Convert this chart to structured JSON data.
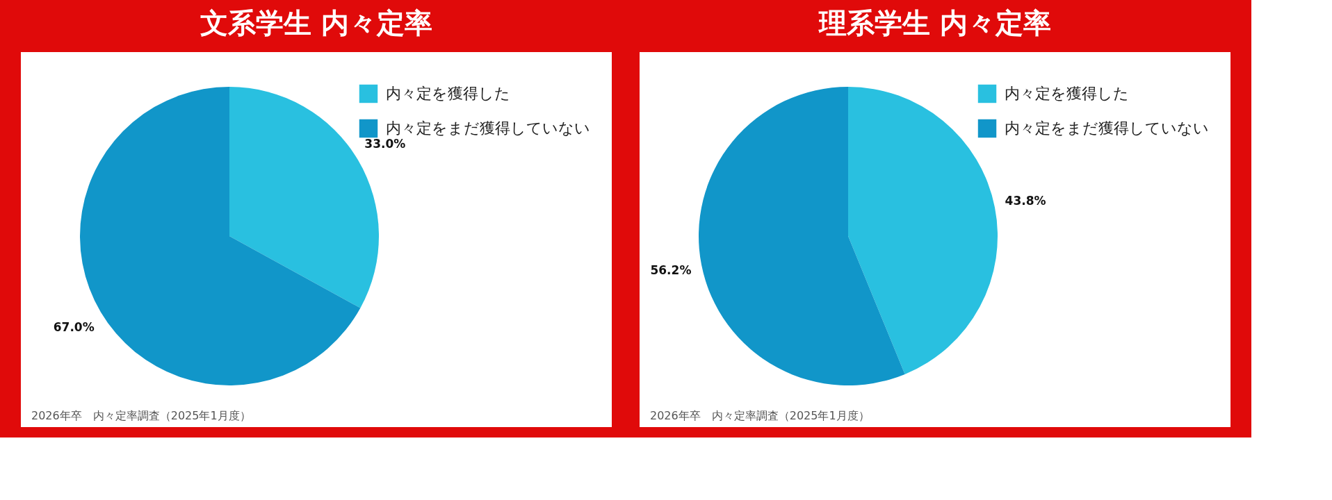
{
  "chart_data": [
    {
      "type": "pie",
      "title": "文系学生 内々定率",
      "categories": [
        "内々定を獲得した",
        "内々定をまだ獲得していない"
      ],
      "values": [
        33.0,
        67.0
      ],
      "colors": [
        "#29c0e0",
        "#1196c9"
      ],
      "value_labels": [
        "33.0%",
        "67.0%"
      ],
      "legend": "top right",
      "annotations": [
        "2026年卒　内々定率調査（2025年1月度）"
      ]
    },
    {
      "type": "pie",
      "title": "理系学生 内々定率",
      "categories": [
        "内々定を獲得した",
        "内々定をまだ獲得していない"
      ],
      "values": [
        43.8,
        56.2
      ],
      "colors": [
        "#29c0e0",
        "#1196c9"
      ],
      "value_labels": [
        "43.8%",
        "56.2%"
      ],
      "legend": "top right",
      "annotations": [
        "2026年卒　内々定率調査（2025年1月度）"
      ]
    }
  ]
}
